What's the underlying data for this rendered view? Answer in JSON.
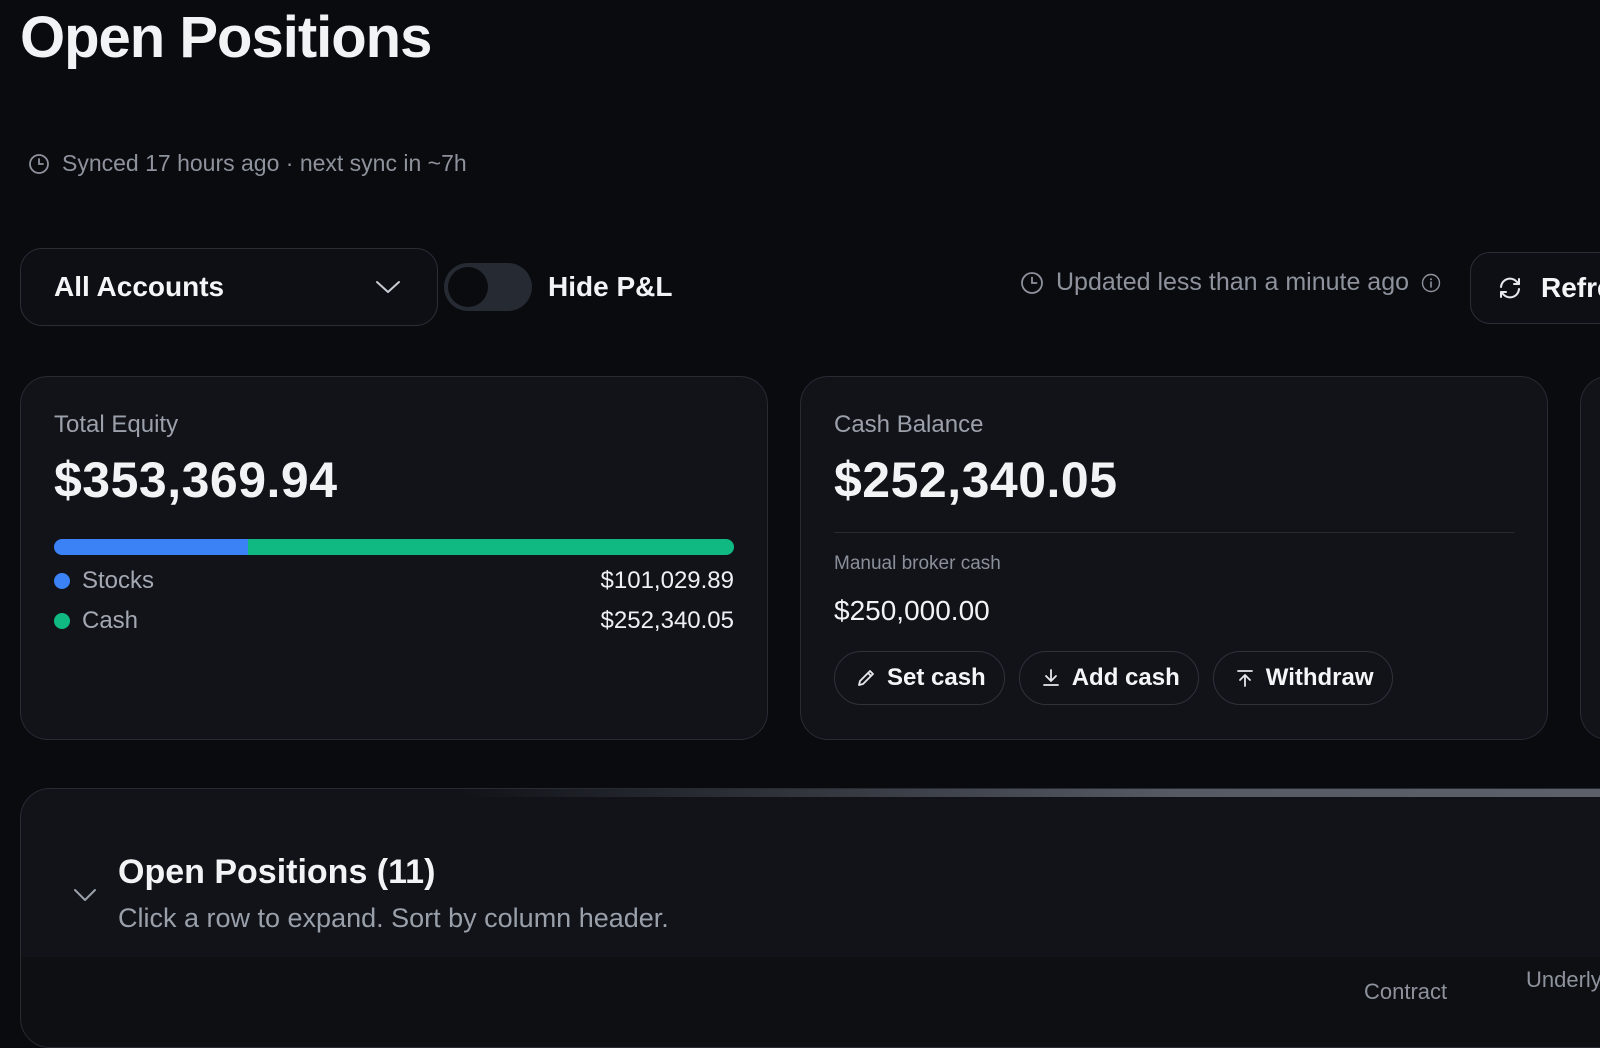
{
  "page": {
    "title": "Open Positions"
  },
  "sync": {
    "icon": "clock-icon",
    "text": "Synced 17 hours ago · next sync in ~7h"
  },
  "toolbar": {
    "account_select": {
      "value": "All Accounts",
      "icon": "chevron-down-icon"
    },
    "hide_pnl": {
      "label": "Hide P&L",
      "checked": false
    },
    "updated": {
      "text": "Updated less than a minute ago",
      "icon": "clock-icon",
      "info_icon": "info-icon"
    },
    "refresh": {
      "label": "Refresh",
      "icon": "refresh-icon"
    }
  },
  "equity_card": {
    "label": "Total Equity",
    "value": "$353,369.94",
    "breakdown": [
      {
        "name": "Stocks",
        "value": "$101,029.89",
        "amount": 101029.89,
        "color": "#3b82f6"
      },
      {
        "name": "Cash",
        "value": "$252,340.05",
        "amount": 252340.05,
        "color": "#10b981"
      }
    ]
  },
  "cash_card": {
    "label": "Cash Balance",
    "value": "$252,340.05",
    "manual_label": "Manual broker cash",
    "manual_value": "$250,000.00",
    "actions": [
      {
        "label": "Set cash",
        "icon": "pencil-icon"
      },
      {
        "label": "Add cash",
        "icon": "download-icon"
      },
      {
        "label": "Withdraw",
        "icon": "upload-icon"
      }
    ]
  },
  "positions": {
    "title": "Open Positions (11)",
    "subtitle": "Click a row to expand. Sort by column header.",
    "columns": {
      "contract": "Contract",
      "underlying": "Underlying"
    }
  },
  "colors": {
    "background": "#0a0b0f",
    "card": "#111319",
    "stocks": "#3b82f6",
    "cash": "#10b981"
  }
}
